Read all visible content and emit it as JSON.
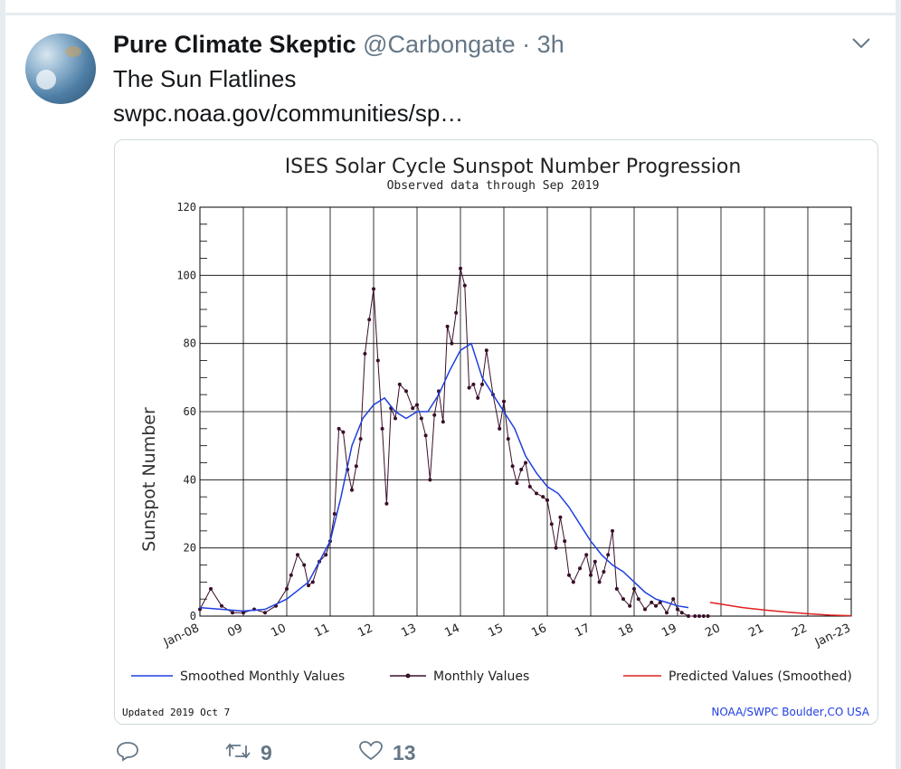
{
  "tweet": {
    "display_name": "Pure Climate Skeptic",
    "handle": "@Carbongate",
    "separator": "·",
    "time": "3h",
    "text": "The Sun Flatlines",
    "link_text": "swpc.noaa.gov/communities/sp…",
    "retweets": "9",
    "likes": "13"
  },
  "icons": {
    "menu": "chevron-down-icon",
    "reply": "reply-icon",
    "retweet": "retweet-icon",
    "like": "heart-icon"
  },
  "colors": {
    "smoothed": "#1f3fe0",
    "monthly": "#3a0f2a",
    "predicted": "#e02020",
    "text_muted": "#657786"
  },
  "chart_data": {
    "type": "line",
    "title": "ISES Solar Cycle Sunspot Number Progression",
    "subtitle": "Observed data through Sep 2019",
    "ylabel": "Sunspot Number",
    "ylim": [
      0,
      120
    ],
    "yticks": [
      "0",
      "20",
      "40",
      "60",
      "80",
      "100",
      "120"
    ],
    "xlim": [
      2008.0,
      2023.0
    ],
    "xtick_labels": [
      "Jan-08",
      "09",
      "10",
      "11",
      "12",
      "13",
      "14",
      "15",
      "16",
      "17",
      "18",
      "19",
      "20",
      "21",
      "22",
      "Jan-23"
    ],
    "legend": [
      {
        "name": "Smoothed Monthly Values"
      },
      {
        "name": "Monthly Values"
      },
      {
        "name": "Predicted Values (Smoothed)"
      }
    ],
    "footer_left": "Updated 2019 Oct  7",
    "footer_right": "NOAA/SWPC Boulder,CO USA",
    "grid": true,
    "series": [
      {
        "name": "Monthly Values",
        "x": [
          2008.0,
          2008.25,
          2008.5,
          2008.75,
          2009.0,
          2009.25,
          2009.5,
          2009.75,
          2010.0,
          2010.1,
          2010.25,
          2010.4,
          2010.5,
          2010.6,
          2010.75,
          2010.9,
          2011.0,
          2011.1,
          2011.2,
          2011.3,
          2011.4,
          2011.5,
          2011.6,
          2011.7,
          2011.8,
          2011.9,
          2012.0,
          2012.1,
          2012.2,
          2012.3,
          2012.4,
          2012.5,
          2012.6,
          2012.75,
          2012.9,
          2013.0,
          2013.1,
          2013.2,
          2013.3,
          2013.4,
          2013.5,
          2013.6,
          2013.7,
          2013.8,
          2013.9,
          2014.0,
          2014.1,
          2014.2,
          2014.3,
          2014.4,
          2014.5,
          2014.6,
          2014.75,
          2014.9,
          2015.0,
          2015.1,
          2015.2,
          2015.3,
          2015.4,
          2015.5,
          2015.6,
          2015.75,
          2015.9,
          2016.0,
          2016.1,
          2016.2,
          2016.3,
          2016.4,
          2016.5,
          2016.6,
          2016.75,
          2016.9,
          2017.0,
          2017.1,
          2017.2,
          2017.3,
          2017.4,
          2017.5,
          2017.6,
          2017.75,
          2017.9,
          2018.0,
          2018.1,
          2018.25,
          2018.4,
          2018.5,
          2018.6,
          2018.75,
          2018.9,
          2019.0,
          2019.1,
          2019.25,
          2019.4,
          2019.5,
          2019.6,
          2019.7
        ],
        "y": [
          2,
          8,
          3,
          1,
          1,
          2,
          1,
          3,
          8,
          12,
          18,
          15,
          9,
          10,
          16,
          18,
          22,
          30,
          55,
          54,
          43,
          37,
          44,
          52,
          77,
          87,
          96,
          75,
          55,
          33,
          61,
          58,
          68,
          66,
          61,
          62,
          58,
          53,
          40,
          59,
          66,
          57,
          85,
          80,
          89,
          102,
          97,
          67,
          68,
          64,
          68,
          78,
          65,
          55,
          63,
          52,
          44,
          39,
          43,
          45,
          38,
          36,
          35,
          34,
          27,
          20,
          29,
          22,
          12,
          10,
          14,
          18,
          12,
          16,
          10,
          13,
          18,
          25,
          8,
          5,
          3,
          8,
          5,
          2,
          4,
          3,
          4,
          1,
          5,
          2,
          1,
          0,
          0,
          0,
          0,
          0
        ]
      },
      {
        "name": "Smoothed Monthly Values",
        "x": [
          2008.0,
          2008.5,
          2009.0,
          2009.5,
          2010.0,
          2010.5,
          2011.0,
          2011.25,
          2011.5,
          2011.75,
          2012.0,
          2012.25,
          2012.5,
          2012.75,
          2013.0,
          2013.25,
          2013.5,
          2013.75,
          2014.0,
          2014.25,
          2014.5,
          2014.75,
          2015.0,
          2015.25,
          2015.5,
          2015.75,
          2016.0,
          2016.25,
          2016.5,
          2016.75,
          2017.0,
          2017.25,
          2017.5,
          2017.75,
          2018.0,
          2018.25,
          2018.5,
          2018.75,
          2019.0,
          2019.25
        ],
        "y": [
          2.5,
          2.0,
          1.5,
          2.0,
          5,
          10,
          22,
          35,
          50,
          58,
          62,
          64,
          60,
          58,
          60,
          60,
          65,
          72,
          78,
          80,
          70,
          65,
          60,
          55,
          47,
          42,
          38,
          36,
          32,
          27,
          22,
          18,
          15,
          13,
          10,
          7,
          5,
          4,
          3,
          2.5
        ]
      },
      {
        "name": "Predicted Values (Smoothed)",
        "x": [
          2019.75,
          2020.0,
          2020.5,
          2021.0,
          2021.5,
          2022.0,
          2022.5,
          2023.0
        ],
        "y": [
          4,
          3.5,
          2.5,
          1.8,
          1.2,
          0.7,
          0.3,
          0.1
        ]
      }
    ]
  }
}
